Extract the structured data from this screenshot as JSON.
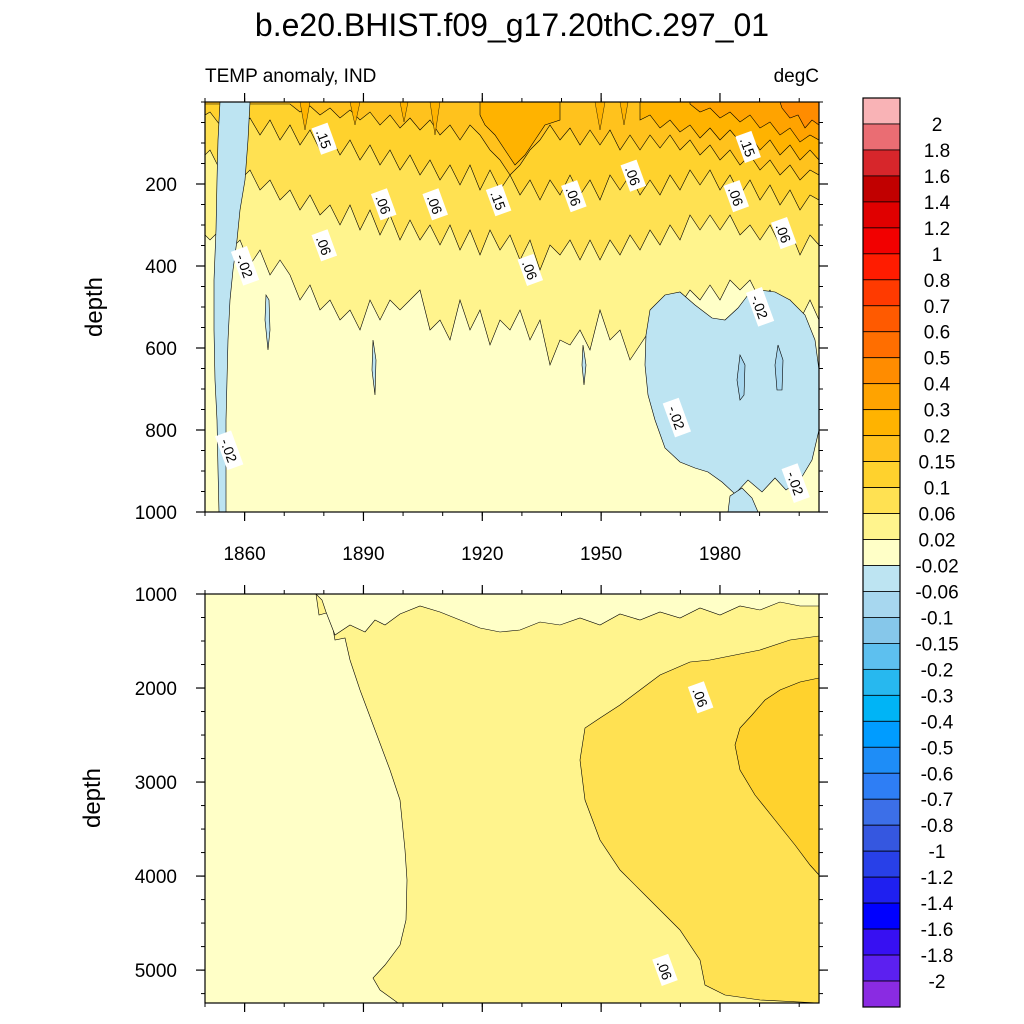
{
  "chart_data": {
    "type": "contour",
    "title": "b.e20.BHIST.f09_g17.20thC.297_01",
    "left_subtitle": "TEMP anomaly, IND",
    "right_subtitle": "degC",
    "x_ticks": [
      "1860",
      "1890",
      "1920",
      "1950",
      "1980"
    ],
    "x_range": [
      1850,
      2005
    ],
    "panels": [
      {
        "ylabel": "depth",
        "y_range": [
          0,
          1000
        ],
        "y_ticks": [
          "200",
          "400",
          "600",
          "800",
          "1000"
        ],
        "contour_labels": [
          {
            "text": ".15",
            "x": 1880,
            "y": 90
          },
          {
            "text": ".06",
            "x": 1895,
            "y": 250
          },
          {
            "text": ".06",
            "x": 1908,
            "y": 250
          },
          {
            "text": ".15",
            "x": 1924,
            "y": 240
          },
          {
            "text": ".06",
            "x": 1943,
            "y": 230
          },
          {
            "text": ".06",
            "x": 1958,
            "y": 180
          },
          {
            "text": ".15",
            "x": 1987,
            "y": 110
          },
          {
            "text": ".06",
            "x": 1984,
            "y": 230
          },
          {
            "text": ".06",
            "x": 1996,
            "y": 320
          },
          {
            "text": ".06",
            "x": 1880,
            "y": 350
          },
          {
            "text": ".06",
            "x": 1932,
            "y": 410
          },
          {
            "text": "-.02",
            "x": 1860,
            "y": 400
          },
          {
            "text": "-.02",
            "x": 1990,
            "y": 500
          },
          {
            "text": "-.02",
            "x": 1969,
            "y": 770
          },
          {
            "text": "-.02",
            "x": 1856,
            "y": 850
          },
          {
            "text": "-.02",
            "x": 1999,
            "y": 930
          }
        ]
      },
      {
        "ylabel": "depth",
        "y_range": [
          1000,
          5350
        ],
        "y_ticks": [
          "1000",
          "2000",
          "3000",
          "4000",
          "5000"
        ],
        "contour_labels": [
          {
            "text": ".06",
            "x": 1975,
            "y": 2100
          },
          {
            "text": ".06",
            "x": 1966,
            "y": 5000
          }
        ]
      }
    ],
    "colorbar": {
      "labels": [
        "2",
        "1.8",
        "1.6",
        "1.4",
        "1.2",
        "1",
        "0.8",
        "0.7",
        "0.6",
        "0.5",
        "0.4",
        "0.3",
        "0.2",
        "0.15",
        "0.1",
        "0.06",
        "0.02",
        "-0.02",
        "-0.06",
        "-0.1",
        "-0.15",
        "-0.2",
        "-0.3",
        "-0.4",
        "-0.5",
        "-0.6",
        "-0.7",
        "-0.8",
        "-1",
        "-1.2",
        "-1.4",
        "-1.6",
        "-1.8",
        "-2"
      ],
      "colors": [
        "#f9b3b6",
        "#ea6d73",
        "#d7262b",
        "#c10000",
        "#e00000",
        "#f20000",
        "#ff1c00",
        "#ff3a00",
        "#ff5a00",
        "#ff6e00",
        "#ff8c00",
        "#ffa300",
        "#ffb300",
        "#ffc21d",
        "#ffd22d",
        "#ffe152",
        "#fff48d",
        "#ffffc7",
        "#bde4f2",
        "#a7d7ef",
        "#86c7ea",
        "#5dc0ef",
        "#27b8ef",
        "#00b4f6",
        "#009cff",
        "#1e8df7",
        "#2e7ef5",
        "#3c6fe8",
        "#3557e0",
        "#2840e8",
        "#1f20f0",
        "#0000ff",
        "#3710f2",
        "#5c20f0",
        "#8a2be2"
      ]
    }
  }
}
